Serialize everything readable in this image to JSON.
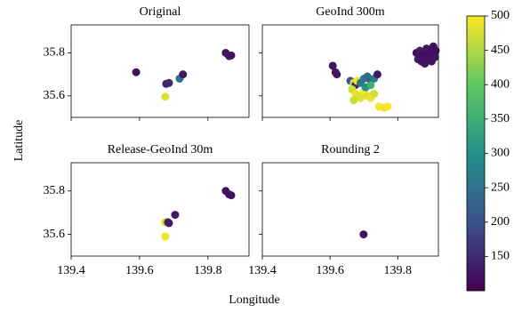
{
  "figure": {
    "xlabel": "Longitude",
    "ylabel": "Latitude",
    "colorbar": {
      "colormap": "viridis",
      "clim": [
        100,
        500
      ],
      "ticks": [
        150,
        200,
        250,
        300,
        350,
        400,
        450,
        500
      ]
    }
  },
  "chart_data": [
    {
      "type": "scatter",
      "title": "Original",
      "xlim": [
        139.4,
        139.92
      ],
      "ylim": [
        35.5,
        35.93
      ],
      "xticks": [
        139.4,
        139.6,
        139.8
      ],
      "yticks": [
        35.6,
        35.8
      ],
      "xticklabels": false,
      "yticklabels": true,
      "x": [
        139.59,
        139.678,
        139.686,
        139.717,
        139.727,
        139.675,
        139.852,
        139.862,
        139.868
      ],
      "values": [
        35.71,
        35.656,
        35.66,
        35.68,
        35.7,
        35.596,
        35.8,
        35.785,
        35.788
      ],
      "c": [
        120,
        140,
        150,
        250,
        130,
        480,
        120,
        125,
        118
      ]
    },
    {
      "type": "scatter",
      "title": "GeoInd 300m",
      "xlim": [
        139.4,
        139.92
      ],
      "ylim": [
        35.5,
        35.93
      ],
      "xticks": [
        139.4,
        139.6,
        139.8
      ],
      "yticks": [
        35.6,
        35.8
      ],
      "xticklabels": false,
      "yticklabels": false,
      "x": [
        139.608,
        139.616,
        139.62,
        139.66,
        139.67,
        139.675,
        139.68,
        139.69,
        139.7,
        139.71,
        139.72,
        139.73,
        139.74,
        139.665,
        139.675,
        139.685,
        139.7,
        139.71,
        139.72,
        139.73,
        139.745,
        139.76,
        139.77,
        139.67,
        139.69,
        139.705,
        139.72,
        139.855,
        139.865,
        139.875,
        139.885,
        139.895,
        139.905,
        139.91,
        139.86,
        139.87,
        139.88,
        139.89,
        139.9,
        139.912
      ],
      "values": [
        35.74,
        35.71,
        35.7,
        35.67,
        35.66,
        35.65,
        35.67,
        35.66,
        35.68,
        35.69,
        35.67,
        35.68,
        35.7,
        35.63,
        35.61,
        35.6,
        35.62,
        35.6,
        35.59,
        35.61,
        35.55,
        35.545,
        35.55,
        35.58,
        35.59,
        35.64,
        35.65,
        35.8,
        35.81,
        35.79,
        35.82,
        35.8,
        35.83,
        35.78,
        35.77,
        35.76,
        35.75,
        35.78,
        35.76,
        35.81
      ],
      "c": [
        120,
        125,
        130,
        200,
        480,
        150,
        490,
        250,
        260,
        240,
        220,
        270,
        130,
        470,
        490,
        480,
        500,
        480,
        490,
        470,
        495,
        490,
        500,
        470,
        480,
        300,
        350,
        120,
        130,
        115,
        125,
        118,
        122,
        128,
        130,
        120,
        125,
        118,
        122,
        116
      ]
    },
    {
      "type": "scatter",
      "title": "Release-GeoInd 30m",
      "xlim": [
        139.4,
        139.92
      ],
      "ylim": [
        35.5,
        35.93
      ],
      "xticks": [
        139.4,
        139.6,
        139.8
      ],
      "yticks": [
        35.6,
        35.8
      ],
      "xticklabels": true,
      "yticklabels": true,
      "x": [
        139.675,
        139.683,
        139.686,
        139.704,
        139.675,
        139.852,
        139.862,
        139.868
      ],
      "values": [
        35.656,
        35.656,
        35.652,
        35.69,
        35.59,
        35.8,
        35.784,
        35.78
      ],
      "c": [
        480,
        150,
        130,
        130,
        490,
        120,
        125,
        118
      ]
    },
    {
      "type": "scatter",
      "title": "Rounding 2",
      "xlim": [
        139.4,
        139.92
      ],
      "ylim": [
        35.5,
        35.93
      ],
      "xticks": [
        139.4,
        139.6,
        139.8
      ],
      "yticks": [
        35.6,
        35.8
      ],
      "xticklabels": true,
      "yticklabels": false,
      "x": [
        139.699
      ],
      "values": [
        35.6
      ],
      "c": [
        120
      ]
    }
  ]
}
